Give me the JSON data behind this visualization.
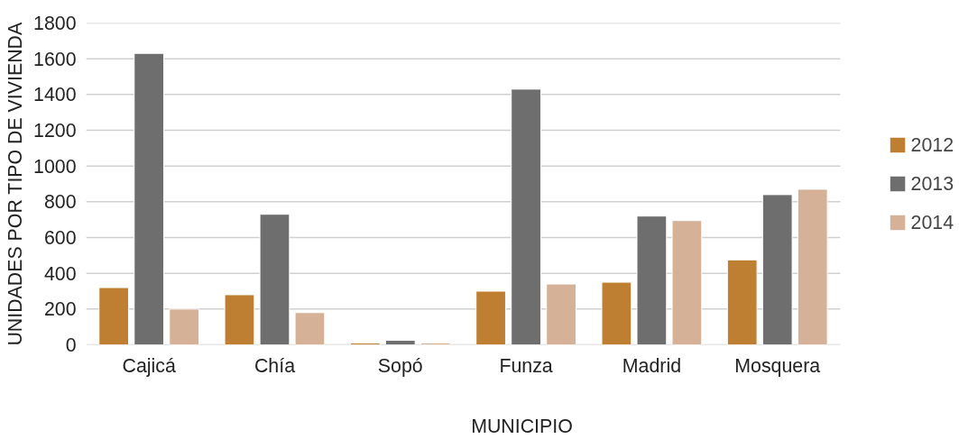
{
  "chart_data": {
    "type": "bar",
    "xlabel": "MUNICIPIO",
    "ylabel": "UNIDADES POR TIPO DE VIVIENDA",
    "categories": [
      "Cajicá",
      "Chía",
      "Sopó",
      "Funza",
      "Madrid",
      "Mosquera"
    ],
    "series": [
      {
        "name": "2012",
        "color": "#be7f32",
        "values": [
          320,
          280,
          10,
          300,
          350,
          475
        ]
      },
      {
        "name": "2013",
        "color": "#6e6e6e",
        "values": [
          1630,
          730,
          25,
          1430,
          720,
          840
        ]
      },
      {
        "name": "2014",
        "color": "#d5b198",
        "values": [
          200,
          180,
          10,
          340,
          695,
          870
        ]
      }
    ],
    "ylim": [
      0,
      1800
    ],
    "yticks": [
      0,
      200,
      400,
      600,
      800,
      1000,
      1200,
      1400,
      1600,
      1800
    ],
    "grid": "y",
    "legend": "right"
  }
}
